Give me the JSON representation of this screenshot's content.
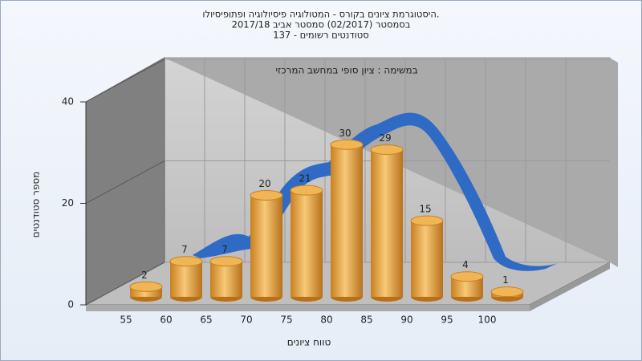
{
  "chart_data": {
    "type": "bar",
    "title": [
      "היסטוגרמת ציונים בקורס - המטולוגיה פיסיולוגיה ופתופיסיולו.",
      "בסמסטר  (02/2017)  סמסטר אביב 2017/18",
      "סטודנטים רשומים - 137"
    ],
    "annotation": "במשימה : ציון סופי במחשב המרכזי",
    "x_label": "טווח ציונים",
    "y_label": "מספר סטודנטים",
    "categories": [
      "55",
      "60",
      "65",
      "70",
      "75",
      "80",
      "85",
      "90",
      "95",
      "100"
    ],
    "values": [
      2,
      7,
      7,
      20,
      21,
      30,
      29,
      15,
      4,
      1
    ],
    "color": "#e8a33c",
    "ylim": [
      0,
      40
    ],
    "yticks": [
      0,
      20,
      40
    ],
    "grid": true
  }
}
